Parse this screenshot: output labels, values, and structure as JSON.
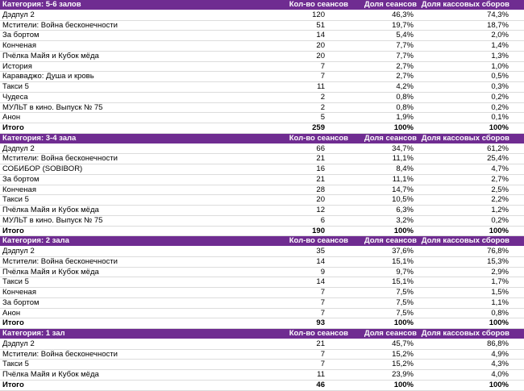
{
  "sections": [
    {
      "header": [
        "Категория: 5-6 залов",
        "Кол-во сеансов",
        "Доля сеансов",
        "Доля кассовых сборов"
      ],
      "rows": [
        [
          "Дэдпул 2",
          120,
          "46,3%",
          "74,3%"
        ],
        [
          "Мстители: Война бесконечности",
          51,
          "19,7%",
          "18,7%"
        ],
        [
          "За бортом",
          14,
          "5,4%",
          "2,0%"
        ],
        [
          "Конченая",
          20,
          "7,7%",
          "1,4%"
        ],
        [
          "Пчёлка Майя и Кубок мёда",
          20,
          "7,7%",
          "1,3%"
        ],
        [
          "История",
          7,
          "2,7%",
          "1,0%"
        ],
        [
          "Караваджо: Душа и кровь",
          7,
          "2,7%",
          "0,5%"
        ],
        [
          "Такси 5",
          11,
          "4,2%",
          "0,3%"
        ],
        [
          "Чудеса",
          2,
          "0,8%",
          "0,2%"
        ],
        [
          "МУЛЬТ в кино. Выпуск № 75",
          2,
          "0,8%",
          "0,2%"
        ],
        [
          "Анон",
          5,
          "1,9%",
          "0,1%"
        ]
      ],
      "total": [
        "Итого",
        259,
        "100%",
        "100%"
      ]
    },
    {
      "header": [
        "Категория: 3-4 зала",
        "Кол-во сеансов",
        "Доля сеансов",
        "Доля кассовых сборов"
      ],
      "rows": [
        [
          "Дэдпул 2",
          66,
          "34,7%",
          "61,2%"
        ],
        [
          "Мстители: Война бесконечности",
          21,
          "11,1%",
          "25,4%"
        ],
        [
          "СОБИБОР (SOBIBOR)",
          16,
          "8,4%",
          "4,7%"
        ],
        [
          "За бортом",
          21,
          "11,1%",
          "2,7%"
        ],
        [
          "Конченая",
          28,
          "14,7%",
          "2,5%"
        ],
        [
          "Такси 5",
          20,
          "10,5%",
          "2,2%"
        ],
        [
          "Пчёлка Майя и Кубок мёда",
          12,
          "6,3%",
          "1,2%"
        ],
        [
          "МУЛЬТ в кино. Выпуск № 75",
          6,
          "3,2%",
          "0,2%"
        ]
      ],
      "total": [
        "Итого",
        190,
        "100%",
        "100%"
      ]
    },
    {
      "header": [
        "Категория: 2 зала",
        "Кол-во сеансов",
        "Доля сеансов",
        "Доля кассовых сборов"
      ],
      "rows": [
        [
          "Дэдпул 2",
          35,
          "37,6%",
          "76,8%"
        ],
        [
          "Мстители: Война бесконечности",
          14,
          "15,1%",
          "15,3%"
        ],
        [
          "Пчёлка Майя и Кубок мёда",
          9,
          "9,7%",
          "2,9%"
        ],
        [
          "Такси 5",
          14,
          "15,1%",
          "1,7%"
        ],
        [
          "Конченая",
          7,
          "7,5%",
          "1,5%"
        ],
        [
          "За бортом",
          7,
          "7,5%",
          "1,1%"
        ],
        [
          "Анон",
          7,
          "7,5%",
          "0,8%"
        ]
      ],
      "total": [
        "Итого",
        93,
        "100%",
        "100%"
      ]
    },
    {
      "header": [
        "Категория: 1 зал",
        "Кол-во сеансов",
        "Доля сеансов",
        "Доля кассовых сборов"
      ],
      "rows": [
        [
          "Дэдпул 2",
          21,
          "45,7%",
          "86,8%"
        ],
        [
          "Мстители: Война бесконечности",
          7,
          "15,2%",
          "4,9%"
        ],
        [
          "Такси 5",
          7,
          "15,2%",
          "4,3%"
        ],
        [
          "Пчёлка Майя и Кубок мёда",
          11,
          "23,9%",
          "4,0%"
        ]
      ],
      "total": [
        "Итого",
        46,
        "100%",
        "100%"
      ]
    }
  ]
}
